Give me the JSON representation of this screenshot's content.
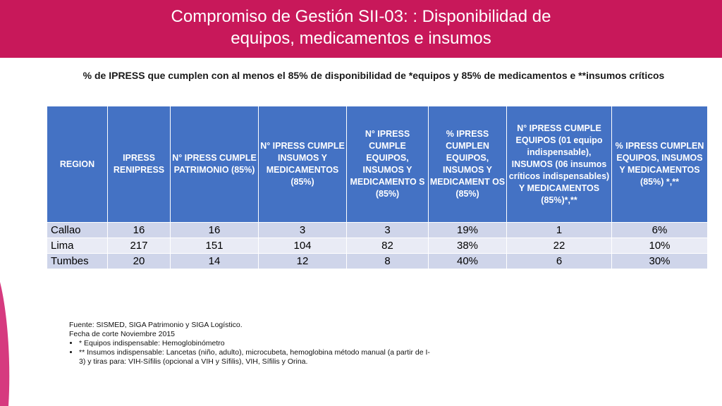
{
  "header": {
    "title_line1": "Compromiso de Gestión SII-03: : Disponibilidad de",
    "title_line2": "equipos, medicamentos e insumos",
    "color": "#c8185a"
  },
  "subtitle": "% de IPRESS que cumplen con al menos el 85% de disponibilidad de *equipos y 85% de medicamentos e **insumos críticos",
  "table": {
    "header_color": "#4472c4",
    "columns": [
      "REGION",
      "IPRESS RENIPRESS",
      "N° IPRESS CUMPLE PATRIMONIO (85%)",
      "N° IPRESS CUMPLE INSUMOS Y MEDICAMENTOS (85%)",
      "N° IPRESS CUMPLE EQUIPOS, INSUMOS Y MEDICAMENTO S (85%)",
      "% IPRESS CUMPLEN EQUIPOS, INSUMOS Y MEDICAMENT OS (85%)",
      "N° IPRESS CUMPLE EQUIPOS (01 equipo indispensable), INSUMOS (06 insumos críticos indispensables) Y MEDICAMENTOS (85%)*,**",
      "% IPRESS CUMPLEN EQUIPOS, INSUMOS Y MEDICAMENTOS (85%) *,**"
    ],
    "rows": [
      [
        "Callao",
        "16",
        "16",
        "3",
        "3",
        "19%",
        "1",
        "6%"
      ],
      [
        "Lima",
        "217",
        "151",
        "104",
        "82",
        "38%",
        "22",
        "10%"
      ],
      [
        "Tumbes",
        "20",
        "14",
        "12",
        "8",
        "40%",
        "6",
        "30%"
      ]
    ]
  },
  "notes": {
    "source": "Fuente: SISMED, SIGA Patrimonio y SIGA Logístico.",
    "cutoff": "Fecha de corte Noviembre 2015",
    "bullets": [
      "* Equipos indispensable: Hemoglobinómetro",
      "** Insumos indispensable: Lancetas (niño, adulto), microcubeta, hemoglobina método manual (a partir de I-3) y tiras para: VIH-Sífilis (opcional a VIH y Sífilis), VIH, Sífilis y Orina."
    ]
  }
}
